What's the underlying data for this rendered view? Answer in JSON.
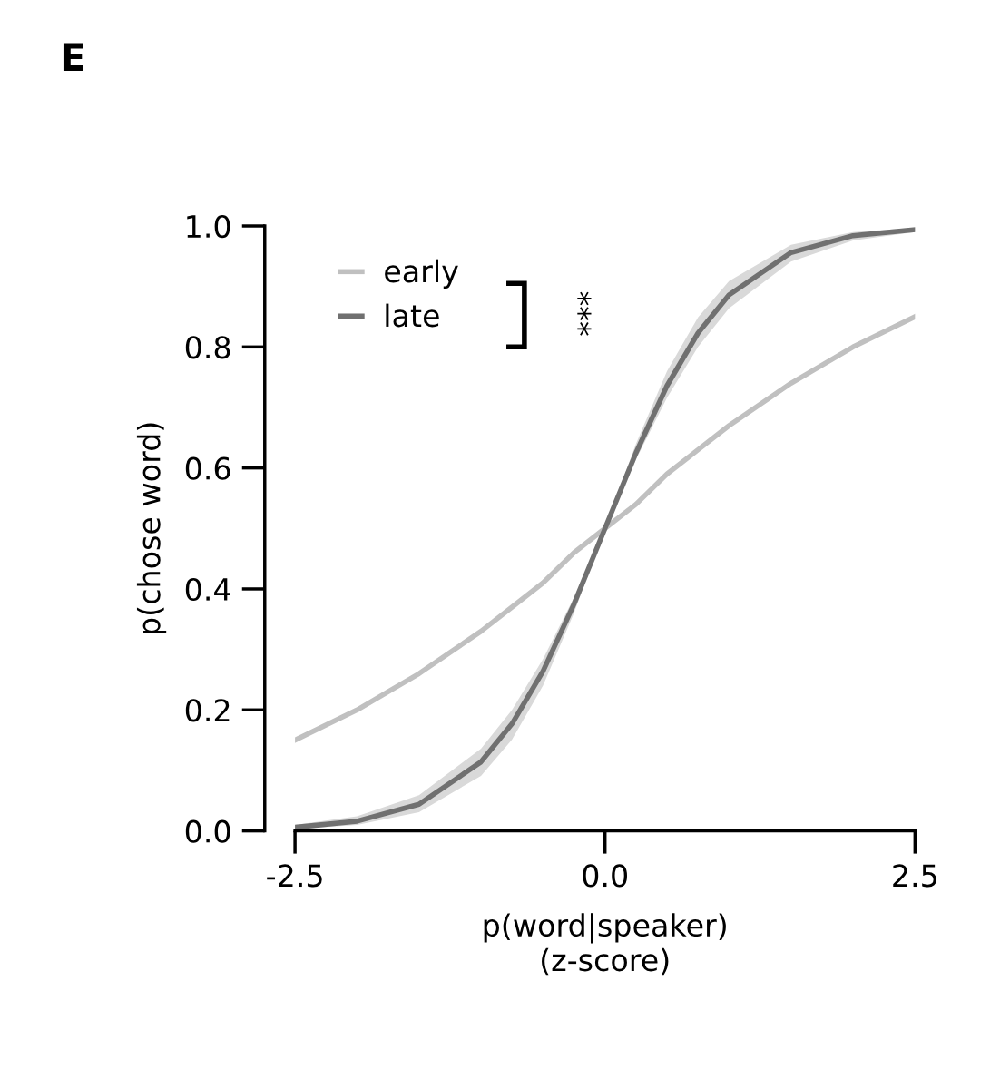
{
  "chart_data": {
    "type": "line",
    "title": "E",
    "xlabel": "p(word|speaker)\n(z-score)",
    "ylabel": "p(chose word)",
    "x": [
      -2.5,
      -2,
      -1.5,
      -1,
      -0.75,
      -0.5,
      -0.25,
      0,
      0.25,
      0.5,
      0.75,
      1,
      1.5,
      2,
      2.5
    ],
    "series": [
      {
        "name": "early",
        "color": "#c0c0c0",
        "values": [
          0.15,
          0.2,
          0.26,
          0.33,
          0.37,
          0.41,
          0.46,
          0.5,
          0.54,
          0.59,
          0.63,
          0.67,
          0.74,
          0.8,
          0.85
        ]
      },
      {
        "name": "late",
        "color": "#707070",
        "values": [
          0.006,
          0.016,
          0.044,
          0.114,
          0.177,
          0.264,
          0.375,
          0.5,
          0.625,
          0.736,
          0.823,
          0.886,
          0.956,
          0.984,
          0.994
        ],
        "lower": [
          0.003,
          0.01,
          0.031,
          0.091,
          0.151,
          0.24,
          0.36,
          0.5,
          0.614,
          0.716,
          0.8,
          0.864,
          0.941,
          0.976,
          0.99
        ],
        "upper": [
          0.01,
          0.024,
          0.059,
          0.136,
          0.2,
          0.284,
          0.386,
          0.5,
          0.64,
          0.76,
          0.849,
          0.909,
          0.969,
          0.99,
          0.997
        ]
      }
    ],
    "xlim": [
      -2.5,
      2.5
    ],
    "ylim": [
      0,
      1
    ],
    "xticks": [
      {
        "value": -2.5,
        "label": "-2.5"
      },
      {
        "value": 0,
        "label": "0.0"
      },
      {
        "value": 2.5,
        "label": "2.5"
      }
    ],
    "yticks": [
      {
        "value": 0,
        "label": "0.0"
      },
      {
        "value": 0.2,
        "label": "0.2"
      },
      {
        "value": 0.4,
        "label": "0.4"
      },
      {
        "value": 0.6,
        "label": "0.6"
      },
      {
        "value": 0.8,
        "label": "0.8"
      },
      {
        "value": 1,
        "label": "1.0"
      }
    ],
    "annotations": [
      "***"
    ],
    "legend": "top left",
    "grid": false,
    "line_style": "solid",
    "marker": "none"
  }
}
